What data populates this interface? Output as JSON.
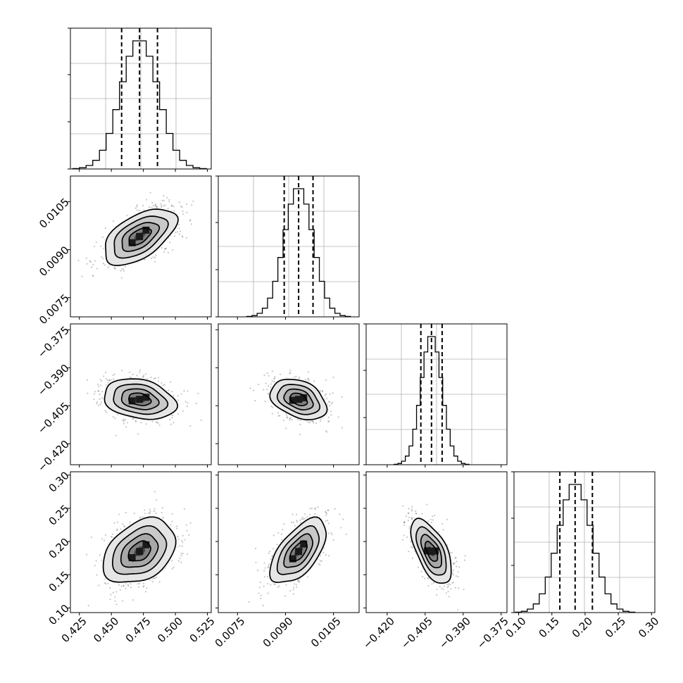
{
  "chart_data": {
    "type": "corner",
    "grid": true,
    "quantiles": [
      0.16,
      0.5,
      0.84
    ],
    "parameters": [
      {
        "ticks": [
          "0.425",
          "0.450",
          "0.475",
          "0.500",
          "0.525"
        ],
        "range": [
          0.418,
          0.528
        ],
        "mean": 0.472,
        "sigma": 0.0145,
        "q16": 0.458,
        "q50": 0.472,
        "q84": 0.486
      },
      {
        "ticks": [
          "0.0075",
          "0.0090",
          "0.0105"
        ],
        "range": [
          0.0069,
          0.0113
        ],
        "mean": 0.00941,
        "sigma": 0.00045,
        "q16": 0.00896,
        "q50": 0.00941,
        "q84": 0.00986
      },
      {
        "ticks": [
          "−0.420",
          "−0.405",
          "−0.390",
          "−0.375"
        ],
        "range": [
          -0.4283,
          -0.3727
        ],
        "mean": -0.4025,
        "sigma": 0.0041,
        "q16": -0.4067,
        "q50": -0.4025,
        "q84": -0.3983
      },
      {
        "ticks": [
          "0.10",
          "0.15",
          "0.20",
          "0.25",
          "0.30"
        ],
        "range": [
          0.093,
          0.305
        ],
        "mean": 0.185,
        "sigma": 0.025,
        "q16": 0.162,
        "q50": 0.185,
        "q84": 0.211
      }
    ],
    "correlations": {
      "1-0": 0.55,
      "2-0": -0.25,
      "3-0": 0.35,
      "2-1": -0.35,
      "3-1": 0.6,
      "3-2": -0.6
    }
  }
}
